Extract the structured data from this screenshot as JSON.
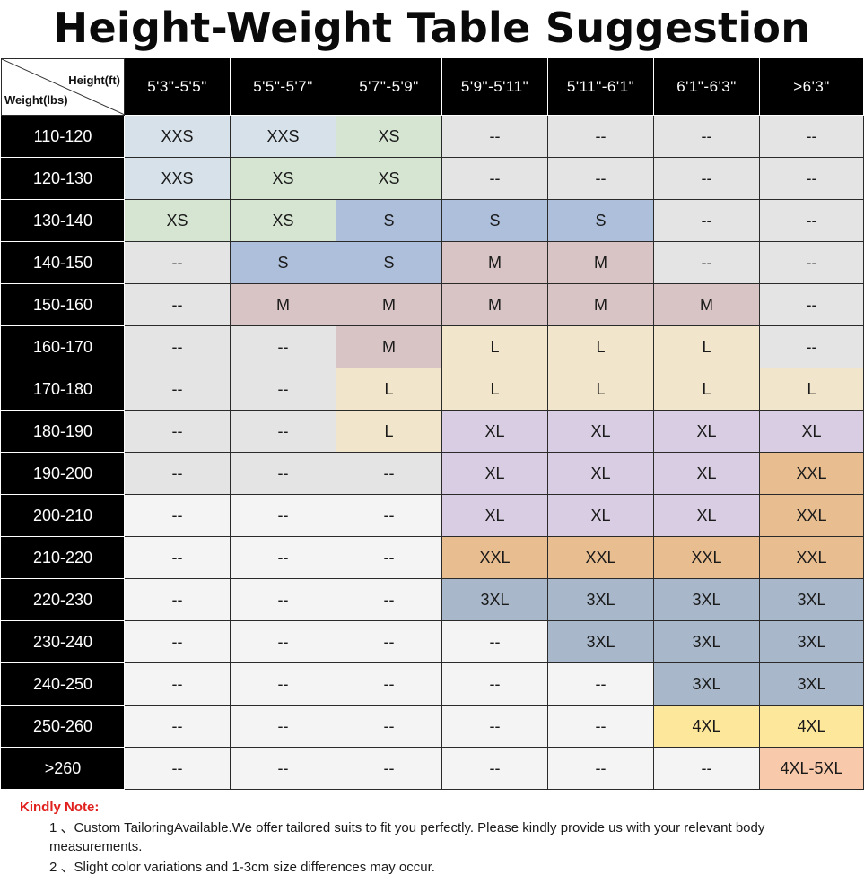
{
  "title": "Height-Weight Table Suggestion",
  "corner": {
    "height_label": "Height(ft)",
    "weight_label": "Weight(lbs)"
  },
  "columns": [
    "5'3\"-5'5\"",
    "5'5\"-5'7\"",
    "5'7\"-5'9\"",
    "5'9\"-5'11\"",
    "5'11\"-6'1\"",
    "6'1\"-6'3\"",
    ">6'3\""
  ],
  "colors": {
    "XXS": "#d7e1ea",
    "XS": "#d6e5d2",
    "S": "#aebfdb",
    "M": "#d8c4c4",
    "L": "#f1e6cb",
    "XL": "#d8cde2",
    "XXL": "#e8bd8f",
    "3XL": "#a8b7c9",
    "4XL": "#fde79a",
    "4XL-5XL": "#f9c9ab",
    "--": "#e4e4e4",
    "--light": "#f4f4f4"
  },
  "rows": [
    {
      "weight": "110-120",
      "cells": [
        "XXS",
        "XXS",
        "XS",
        "--",
        "--",
        "--",
        "--"
      ]
    },
    {
      "weight": "120-130",
      "cells": [
        "XXS",
        "XS",
        "XS",
        "--",
        "--",
        "--",
        "--"
      ]
    },
    {
      "weight": "130-140",
      "cells": [
        "XS",
        "XS",
        "S",
        "S",
        "S",
        "--",
        "--"
      ]
    },
    {
      "weight": "140-150",
      "cells": [
        "--",
        "S",
        "S",
        "M",
        "M",
        "--",
        "--"
      ]
    },
    {
      "weight": "150-160",
      "cells": [
        "--",
        "M",
        "M",
        "M",
        "M",
        "M",
        "--"
      ]
    },
    {
      "weight": "160-170",
      "cells": [
        "--",
        "--",
        "M",
        "L",
        "L",
        "L",
        "--"
      ]
    },
    {
      "weight": "170-180",
      "cells": [
        "--",
        "--",
        "L",
        "L",
        "L",
        "L",
        "L"
      ]
    },
    {
      "weight": "180-190",
      "cells": [
        "--",
        "--",
        "L",
        "XL",
        "XL",
        "XL",
        "XL"
      ]
    },
    {
      "weight": "190-200",
      "cells": [
        "--",
        "--",
        "--",
        "XL",
        "XL",
        "XL",
        "XXL"
      ]
    },
    {
      "weight": "200-210",
      "cells": [
        "--",
        "--",
        "--",
        "XL",
        "XL",
        "XL",
        "XXL"
      ]
    },
    {
      "weight": "210-220",
      "cells": [
        "--",
        "--",
        "--",
        "XXL",
        "XXL",
        "XXL",
        "XXL"
      ]
    },
    {
      "weight": "220-230",
      "cells": [
        "--",
        "--",
        "--",
        "3XL",
        "3XL",
        "3XL",
        "3XL"
      ]
    },
    {
      "weight": "230-240",
      "cells": [
        "--",
        "--",
        "--",
        "--",
        "3XL",
        "3XL",
        "3XL"
      ]
    },
    {
      "weight": "240-250",
      "cells": [
        "--",
        "--",
        "--",
        "--",
        "--",
        "3XL",
        "3XL"
      ]
    },
    {
      "weight": "250-260",
      "cells": [
        "--",
        "--",
        "--",
        "--",
        "--",
        "4XL",
        "4XL"
      ]
    },
    {
      "weight": ">260",
      "cells": [
        "--",
        "--",
        "--",
        "--",
        "--",
        "--",
        "4XL-5XL"
      ]
    }
  ],
  "notes": {
    "title": "Kindly Note:",
    "items": [
      "1 、Custom  TailoringAvailable.We offer tailored suits to fit you perfectly. Please kindly provide us with your relevant body measurements.",
      "2 、Slight color variations and 1-3cm size differences may occur."
    ]
  }
}
